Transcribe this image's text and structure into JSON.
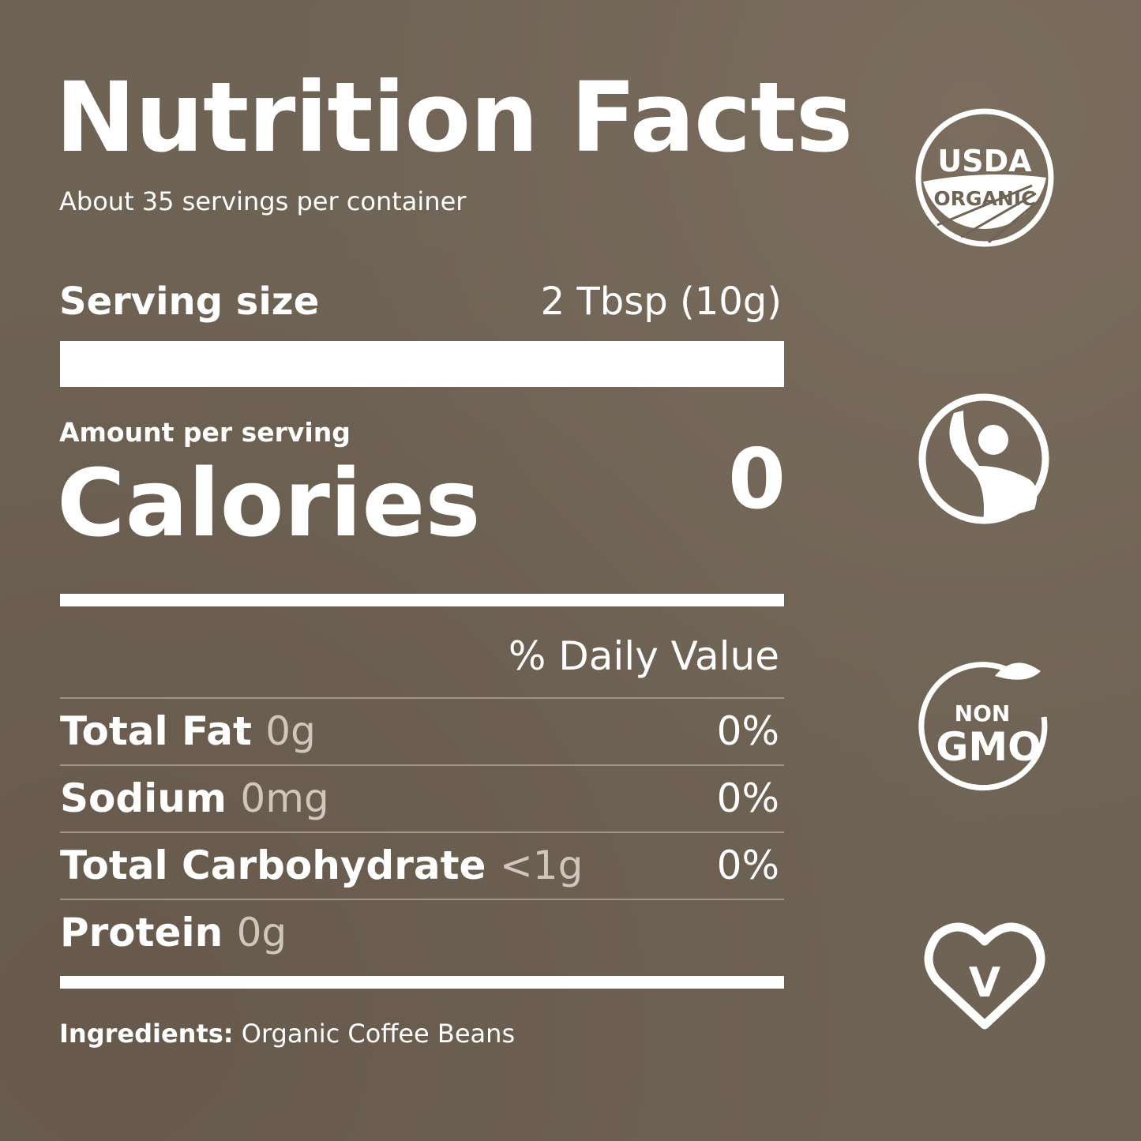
{
  "title": "Nutrition Facts",
  "servings_per_container": "About 35 servings per container",
  "serving_size": {
    "label": "Serving size",
    "value": "2 Tbsp (10g)"
  },
  "amount_per_serving": "Amount per serving",
  "calories": {
    "label": "Calories",
    "value": "0"
  },
  "daily_value_header": "% Daily Value",
  "nutrients": [
    {
      "name": "Total Fat",
      "amount": "0g",
      "dv": "0%"
    },
    {
      "name": "Sodium",
      "amount": "0mg",
      "dv": "0%"
    },
    {
      "name": "Total Carbohydrate",
      "amount": "<1g",
      "dv": "0%"
    },
    {
      "name": "Protein",
      "amount": "0g",
      "dv": ""
    }
  ],
  "ingredients": {
    "label": "Ingredients:",
    "value": "Organic Coffee Beans"
  },
  "badges": [
    {
      "icon": "usda-organic-icon",
      "text_top": "USDA",
      "text_bottom": "ORGANIC"
    },
    {
      "icon": "fair-trade-icon"
    },
    {
      "icon": "non-gmo-icon",
      "text_top": "NON",
      "text_bottom": "GMO"
    },
    {
      "icon": "vegan-heart-icon",
      "text": "V"
    }
  ],
  "colors": {
    "background": "#6f6355",
    "text": "#ffffff",
    "muted": "#cfc7bd"
  }
}
